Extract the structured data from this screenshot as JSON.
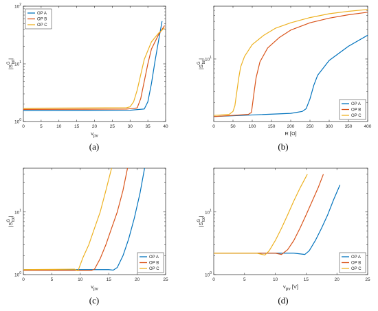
{
  "chart_data": [
    {
      "type": "line",
      "caption": "(a)",
      "xlabel": "v_pv",
      "ylabel": "|S_tot^G|",
      "xlim": [
        0,
        40
      ],
      "ylim": [
        1,
        100
      ],
      "y_scale": "log",
      "xticks": [
        0,
        5,
        10,
        15,
        20,
        25,
        30,
        35,
        40
      ],
      "yticks": [
        {
          "value": 1,
          "base": "10",
          "exp": "0"
        },
        {
          "value": 10,
          "base": "10",
          "exp": "1"
        },
        {
          "value": 100,
          "base": "10",
          "exp": "2"
        }
      ],
      "grid": false,
      "legend": "top-left",
      "series": [
        {
          "name": "OP A",
          "color": "#0072BD",
          "x": [
            0,
            30,
            34,
            35,
            36,
            37,
            38,
            39
          ],
          "y": [
            1.55,
            1.57,
            1.65,
            2.2,
            4.5,
            11,
            25,
            55
          ]
        },
        {
          "name": "OP B",
          "color": "#D95319",
          "x": [
            0,
            29,
            32,
            33,
            34,
            35,
            36,
            38,
            39.7
          ],
          "y": [
            1.62,
            1.64,
            1.72,
            2.5,
            5,
            10,
            18,
            32,
            46
          ]
        },
        {
          "name": "OP C",
          "color": "#EDB120",
          "x": [
            0,
            29,
            30,
            31,
            32,
            33,
            34,
            36,
            38,
            39.7
          ],
          "y": [
            1.7,
            1.73,
            1.8,
            2.2,
            3.5,
            6.5,
            12,
            24,
            34,
            42
          ]
        }
      ]
    },
    {
      "type": "line",
      "caption": "(b)",
      "xlabel": "R [Ω]",
      "ylabel": "|S_tot^G|",
      "xlim": [
        0,
        400
      ],
      "ylim": [
        1,
        70
      ],
      "y_scale": "log",
      "xticks": [
        0,
        50,
        100,
        150,
        200,
        250,
        300,
        350,
        400
      ],
      "yticks": [
        {
          "value": 10,
          "base": "10",
          "exp": "1"
        }
      ],
      "grid": false,
      "legend": "bottom-right",
      "series": [
        {
          "name": "OP A",
          "color": "#0072BD",
          "x": [
            0,
            200,
            230,
            240,
            250,
            260,
            270,
            300,
            350,
            400
          ],
          "y": [
            1.2,
            1.35,
            1.45,
            1.6,
            2.3,
            3.8,
            5.5,
            9.5,
            16,
            24
          ]
        },
        {
          "name": "OP B",
          "color": "#D95319",
          "x": [
            0,
            90,
            98,
            105,
            110,
            120,
            140,
            170,
            200,
            250,
            300,
            350,
            400
          ],
          "y": [
            1.2,
            1.3,
            1.4,
            3,
            5,
            9,
            15,
            22,
            29,
            38,
            45,
            51,
            56
          ]
        },
        {
          "name": "OP C",
          "color": "#EDB120",
          "x": [
            0,
            40,
            50,
            55,
            60,
            65,
            70,
            80,
            100,
            130,
            160,
            200,
            250,
            300,
            350,
            400
          ],
          "y": [
            1.25,
            1.3,
            1.45,
            1.8,
            3,
            5,
            7.5,
            11,
            17,
            24,
            31,
            38,
            46,
            53,
            58,
            62
          ]
        }
      ]
    },
    {
      "type": "line",
      "caption": "(c)",
      "xlabel": "v_pv",
      "ylabel": "|S_tot^G|",
      "xlim": [
        0,
        25
      ],
      "ylim": [
        1,
        50
      ],
      "y_scale": "log",
      "xticks": [
        0,
        5,
        10,
        15,
        20,
        25
      ],
      "yticks": [
        {
          "value": 1,
          "base": "10",
          "exp": "0"
        },
        {
          "value": 10,
          "base": "10",
          "exp": "1"
        }
      ],
      "grid": false,
      "legend": "bottom-right",
      "series": [
        {
          "name": "OP A",
          "color": "#0072BD",
          "x": [
            0,
            15,
            15.8,
            16.5,
            17.5,
            18.5,
            19.5,
            20.5,
            21.3
          ],
          "y": [
            1.2,
            1.2,
            1.18,
            1.3,
            2,
            3.7,
            8,
            20,
            50
          ]
        },
        {
          "name": "OP B",
          "color": "#D95319",
          "x": [
            0,
            12,
            12.5,
            13.5,
            14.5,
            15.5,
            16.5,
            17.5,
            18.3
          ],
          "y": [
            1.17,
            1.17,
            1.22,
            1.8,
            3,
            5.5,
            10,
            22,
            50
          ]
        },
        {
          "name": "OP C",
          "color": "#EDB120",
          "x": [
            0,
            9,
            9.6,
            10.5,
            11.5,
            12.5,
            13.5,
            14.5,
            15.5
          ],
          "y": [
            1.2,
            1.22,
            1.15,
            1.9,
            3,
            5.5,
            10,
            22,
            50
          ]
        }
      ]
    },
    {
      "type": "line",
      "caption": "(d)",
      "xlabel": "v_pv [V]",
      "ylabel": "|S_tot^G|",
      "xlim": [
        0,
        25
      ],
      "ylim": [
        1,
        50
      ],
      "y_scale": "log",
      "xticks": [
        0,
        5,
        10,
        15,
        20,
        25
      ],
      "yticks": [
        {
          "value": 1,
          "base": "10",
          "exp": "0"
        },
        {
          "value": 10,
          "base": "10",
          "exp": "1"
        }
      ],
      "grid": false,
      "legend": "bottom-right",
      "series": [
        {
          "name": "OP A",
          "color": "#0072BD",
          "x": [
            0,
            13,
            14.8,
            15.5,
            16.5,
            17.5,
            18.5,
            19.5,
            20.5
          ],
          "y": [
            2.2,
            2.2,
            2.1,
            2.4,
            3.5,
            5.5,
            9,
            16,
            27
          ]
        },
        {
          "name": "OP B",
          "color": "#D95319",
          "x": [
            0,
            10,
            11,
            12,
            13,
            14,
            15,
            16,
            17,
            17.8
          ],
          "y": [
            2.2,
            2.2,
            2.1,
            2.5,
            3.5,
            5.5,
            9,
            15,
            25,
            40
          ]
        },
        {
          "name": "OP C",
          "color": "#EDB120",
          "x": [
            0,
            7,
            8.3,
            9,
            10,
            11,
            12,
            13,
            14,
            15.2
          ],
          "y": [
            2.2,
            2.2,
            2.05,
            2.4,
            3.5,
            5.5,
            9,
            15,
            24,
            40
          ]
        }
      ]
    }
  ]
}
